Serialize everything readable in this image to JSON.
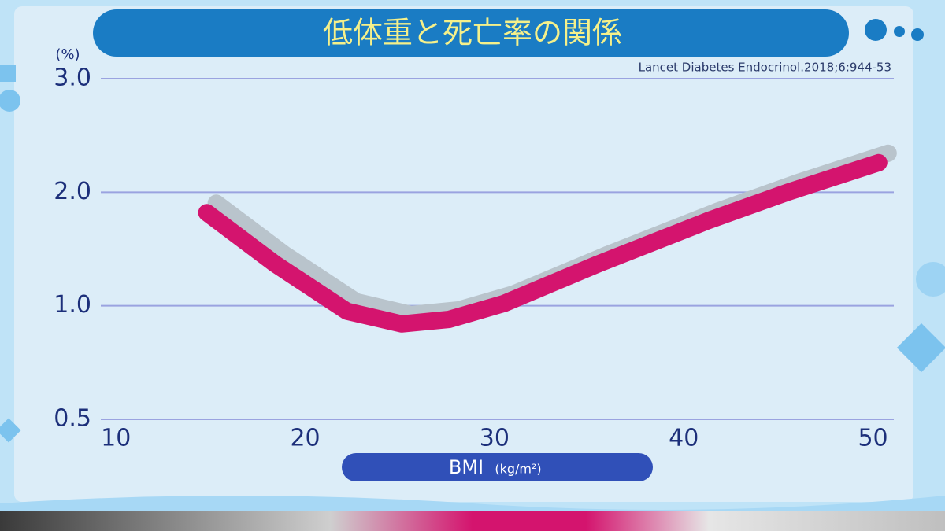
{
  "chart_data": {
    "type": "line",
    "title": "低体重と死亡率の関係",
    "source": "Lancet Diabetes Endocrinol.2018;6:944-53",
    "y_unit": "(%)",
    "x_label": "BMI",
    "x_unit": "(kg/m²)",
    "x": [
      14.8,
      18.4,
      22.2,
      25.1,
      27.6,
      30.5,
      35.5,
      41.3,
      45.5,
      50.3
    ],
    "series": [
      {
        "color": "#d4146e",
        "values": [
          1.82,
          1.37,
          0.976,
          0.92,
          0.94,
          1.02,
          1.37,
          1.75,
          2.0,
          2.26
        ]
      }
    ],
    "xlim": [
      9.2,
      51.1
    ],
    "xticks": [
      10,
      20,
      30,
      40,
      50
    ],
    "ylim": [
      0.5,
      3.0
    ],
    "yticks": [
      0.5,
      {
        "value": 1,
        "label": "1.0"
      },
      {
        "value": 2,
        "label": "2.0"
      },
      {
        "value": 3,
        "label": "3.0"
      }
    ],
    "grid": true
  }
}
